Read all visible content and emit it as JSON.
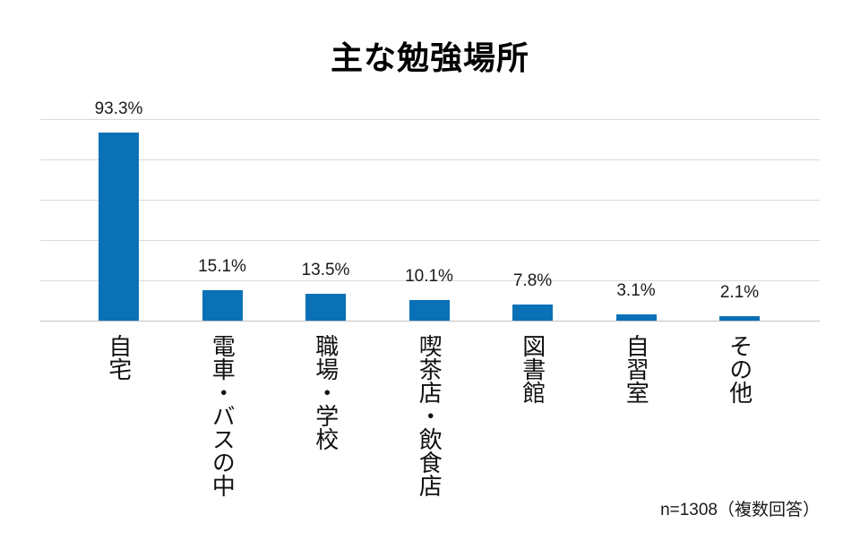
{
  "chart_data": {
    "type": "bar",
    "title": "主な勉強場所",
    "categories": [
      "自宅",
      "電車・バスの中",
      "職場・学校",
      "喫茶店・飲食店",
      "図書館",
      "自習室",
      "その他"
    ],
    "values": [
      93.3,
      15.1,
      13.5,
      10.1,
      7.8,
      3.1,
      2.1
    ],
    "value_labels": [
      "93.3%",
      "15.1%",
      "13.5%",
      "10.1%",
      "7.8%",
      "3.1%",
      "2.1%"
    ],
    "note": "n=1308（複数回答）",
    "xlabel": "",
    "ylabel": "",
    "ylim": [
      0,
      100
    ],
    "gridline_step": 20,
    "grid": true,
    "legend": "none",
    "category_text_orientation": "vertical",
    "colors": {
      "bar": "#0a71b7",
      "gridline": "#d9d9d9",
      "axis_line": "#c3c3c3",
      "text": "#1a1a1a",
      "title": "#000000",
      "background": "#ffffff"
    }
  }
}
